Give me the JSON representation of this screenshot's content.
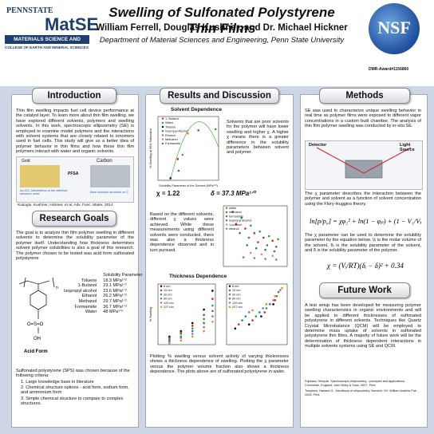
{
  "header": {
    "title": "Swelling of Sulfonated Polystyrene Thin Films",
    "authors": "William Ferrell, Douglas Kushner, and Dr. Michael Hickner",
    "department": "Department of Material Sciences and Engineering, Penn State University",
    "logo_psu": "PENNSTATE",
    "logo_matse": "MatSE",
    "matse_bar": "MATERIALS SCIENCE AND ENGINEERING",
    "matse_sub": "COLLEGE OF EARTH AND MINERAL SCIENCES",
    "nsf": "NSF",
    "award": "DMR-Award#1156860"
  },
  "sections": {
    "introduction": "Introduction",
    "research_goals": "Research Goals",
    "results": "Results and Discussion",
    "methods": "Methods",
    "future_work": "Future Work"
  },
  "introduction": {
    "body": "Thin film swelling impacts fuel cell device performance at the catalyst layer. To learn more about thin film swelling, we have explored different solvents, polymers and swelling solvents. In this work, spectroscopic ellipsometry (SE) is employed to examine model polymers and the interactions with solvent systems that are closely related to ionomers used in fuel cells. This study will give us a better idea of polymer behavior in thin films and how these thin film polymers interact with water and organic solvents.",
    "fig_labels": [
      "Gold",
      "Carbon",
      "PFSA"
    ],
    "fig_caption_left": "Au-SO₃ interactions at the interface structure order",
    "fig_caption_right": "Bare isotropic structure on C",
    "citation": "Kusoglu, Kushner, Hickner, et al. Adv. Func. Mater. 2014"
  },
  "research_goals": {
    "body": "The goal is to analyze thin film polymer swelling in different solvents to determine the solubility parameter of the polymer itself. Understanding how thickness determines solvent polymer solubilities is also a goal of this research. The polymer chosen to be tested was acid form sulfonated polystyrene",
    "table_header": "Solubility Parameter",
    "solvents": [
      {
        "name": "Toluene",
        "value": "18.3 MPa¹ᐟ²"
      },
      {
        "name": "1-Butanol",
        "value": "23.1 MPa¹ᐟ²"
      },
      {
        "name": "Isopropyl alcohol",
        "value": "23.6 MPa¹ᐟ²"
      },
      {
        "name": "Ethanol",
        "value": "26.2 MPa¹ᐟ²"
      },
      {
        "name": "Methanol",
        "value": "29.7 MPa¹ᐟ²"
      },
      {
        "name": "Formamide",
        "value": "36.7 MPa¹ᐟ²"
      },
      {
        "name": "Water",
        "value": "48 MPa¹ᐟ²"
      }
    ],
    "structure_label": "Acid Form",
    "struct_group": "O=S=O",
    "struct_oh": "OH",
    "struct_n": "n",
    "criteria_intro": "Sulfonated polystyrene (SPS) was chosen because of the following criteria:",
    "criteria": [
      "1. Large knowledge base in literature",
      "2. Chemical structure options - acid form, sodium form, and ammonium form",
      "3. Simple chemical structure to compare to complex structures."
    ]
  },
  "results": {
    "solvent_dep_title": "Solvent Dependence",
    "solvent_chart_legend": [
      "1- Butanol",
      "Water",
      "Toluene",
      "Isopropyl Alcohol",
      "Ethanol",
      "Methanol",
      "Formamide"
    ],
    "solvent_text": "Solvents that are poor solvents for the polymer will have lower swelling and higher χ. A higher χ means there is a greater difference in the solubility parameters between solvent and polymer.",
    "chi": "χ = 1.22",
    "delta": "δ = 37.3 MPa¹ᐟ²",
    "x_text": "Based on the different solvents, different χ values were achieved. While these measurements using different solvents were conducted, there was also a thickness dependence observed and in turn pursued.",
    "thickness_title": "Thickness Dependence",
    "thickness_text": "Plotting % swelling versus solvent activity of varying thicknesses shows a thickness dependence of swelling. Plotting the χ parameter versus the polymer volume fraction also shows a thickness dependence. The plots above are of sulfonated polystyrene in water."
  },
  "methods": {
    "body1": "SE was used to characterize unique swelling behavior in real time as polymer films were exposed to different vapor concentrations in a custom built chamber. The analysis of thin film polymer swelling was conducted by in-situ SE.",
    "detector": "Detector",
    "light_source": "Light Source",
    "body2": "The χ parameter describes the interaction between the polymer and solvent as a function of solvent concentration using the Flory-Huggins theory.",
    "body3": "The χ parameter can be used to determine the solubility parameter by the equation below. Vᵢ is the molar volume of the solvent, δᵢ is the solubility parameter of the solvent, and δ is the solubility parameter of the polymer."
  },
  "future_work": {
    "body": "A test setup has been developed for measuring polymer swelling characteristics in organic environments and will be applied to different thicknesses of sulfonated polystyrene in different solvents. Techniques like Quartz Crystal Microbalance (QCM) will be employed to determine mass uptake of solvents in sulfonated polystyrene thin films. A majority of future work will be the determination of thickness dependent interactions in multiple solvents systems using SE and QCM.",
    "refs": [
      "Fujiwara, Hiroyuki. Spectroscopic ellipsometry : principles and applications. Chichester, England: John Wiley & Sons, 2007. Print.",
      "Tompkins, Harland G.. Handbook of ellipsometry. Norwich, NY: William Andrew Pub. ; 2005. Print."
    ]
  },
  "chart_data": [
    {
      "type": "scatter",
      "title": "",
      "xlabel": "Solubility Parameter of the Solvent (MPa¹ᐟ²)",
      "ylabel": "% Swelling at 95% Saturation",
      "xlim": [
        10,
        50
      ],
      "ylim": [
        0,
        60
      ],
      "series": [
        {
          "name": "1- Butanol",
          "x": [
            23.1
          ],
          "y": [
            20
          ]
        },
        {
          "name": "Water",
          "x": [
            48
          ],
          "y": [
            48
          ]
        },
        {
          "name": "Toluene",
          "x": [
            18.3
          ],
          "y": [
            2
          ]
        },
        {
          "name": "Isopropyl Alcohol",
          "x": [
            23.6
          ],
          "y": [
            9
          ]
        },
        {
          "name": "Ethanol",
          "x": [
            26.2
          ],
          "y": [
            24
          ]
        },
        {
          "name": "Methanol",
          "x": [
            29.7
          ],
          "y": [
            44
          ]
        },
        {
          "name": "Formamide",
          "x": [
            36.7
          ],
          "y": [
            47
          ]
        }
      ],
      "colors": [
        "#d62728",
        "#2ca02c",
        "#000000",
        "#1f77b4",
        "#9467bd",
        "#ff7f0e",
        "#8c564b"
      ]
    },
    {
      "type": "scatter",
      "xlabel": "",
      "ylabel": "",
      "xlim": [
        0.65,
        1.0
      ],
      "ylim": [
        0,
        4
      ],
      "series": [
        {
          "name": "water",
          "x": [
            0.7,
            0.75,
            0.8,
            0.85,
            0.9,
            0.95
          ],
          "y": [
            3.6,
            3.2,
            2.7,
            2.3,
            2.0,
            1.8
          ]
        },
        {
          "name": "methanol",
          "x": [
            0.72,
            0.77,
            0.82,
            0.87,
            0.92
          ],
          "y": [
            2.8,
            2.5,
            2.2,
            1.9,
            1.7
          ]
        },
        {
          "name": "formamide",
          "x": [
            0.74,
            0.79,
            0.84,
            0.89,
            0.94
          ],
          "y": [
            2.2,
            1.9,
            1.6,
            1.4,
            1.3
          ]
        },
        {
          "name": "isopropyl alcohol",
          "x": [
            0.78,
            0.83,
            0.88,
            0.93
          ],
          "y": [
            1.4,
            1.2,
            1.1,
            1.0
          ]
        },
        {
          "name": "1-butanol",
          "x": [
            0.8,
            0.86,
            0.92
          ],
          "y": [
            0.9,
            0.8,
            0.7
          ]
        },
        {
          "name": "ethanol",
          "x": [
            0.76,
            0.82,
            0.88,
            0.94
          ],
          "y": [
            0.6,
            0.55,
            0.5,
            0.45
          ]
        }
      ],
      "colors": [
        "#2ca02c",
        "#d62728",
        "#8c564b",
        "#1f77b4",
        "#e377c2",
        "#9467bd"
      ]
    },
    {
      "type": "scatter",
      "xlabel": "",
      "ylabel": "% Swelling",
      "xlim": [
        0,
        1
      ],
      "ylim": [
        0,
        45
      ],
      "series": [
        {
          "name": "8 nm",
          "x": [
            0.2,
            0.4,
            0.6,
            0.8,
            0.95
          ],
          "y": [
            6,
            10,
            16,
            26,
            40
          ]
        },
        {
          "name": "15 nm",
          "x": [
            0.2,
            0.4,
            0.6,
            0.8,
            0.95
          ],
          "y": [
            5,
            9,
            14,
            22,
            34
          ]
        },
        {
          "name": "30 nm",
          "x": [
            0.2,
            0.4,
            0.6,
            0.8,
            0.95
          ],
          "y": [
            4,
            8,
            12,
            19,
            29
          ]
        },
        {
          "name": "60 nm",
          "x": [
            0.2,
            0.4,
            0.6,
            0.8,
            0.95
          ],
          "y": [
            3,
            6,
            10,
            16,
            25
          ]
        },
        {
          "name": "120 nm",
          "x": [
            0.2,
            0.4,
            0.6,
            0.8,
            0.95
          ],
          "y": [
            2,
            5,
            8,
            13,
            21
          ]
        },
        {
          "name": "227 nm",
          "x": [
            0.2,
            0.4,
            0.6,
            0.8,
            0.95
          ],
          "y": [
            1,
            3,
            6,
            10,
            17
          ]
        }
      ],
      "colors": [
        "#000000",
        "#d62728",
        "#2ca02c",
        "#1f77b4",
        "#9467bd",
        "#ff7f0e"
      ]
    },
    {
      "type": "scatter",
      "xlabel": "",
      "ylabel": "",
      "xlim": [
        0.65,
        1.0
      ],
      "ylim": [
        0.5,
        2.0
      ],
      "series": [
        {
          "name": "8 nm",
          "x": [
            0.7,
            0.78,
            0.85,
            0.92
          ],
          "y": [
            0.9,
            1.0,
            1.2,
            1.5
          ]
        },
        {
          "name": "15 nm",
          "x": [
            0.72,
            0.8,
            0.87,
            0.93
          ],
          "y": [
            1.0,
            1.1,
            1.3,
            1.6
          ]
        },
        {
          "name": "30 nm",
          "x": [
            0.74,
            0.82,
            0.88,
            0.94
          ],
          "y": [
            1.1,
            1.2,
            1.4,
            1.7
          ]
        },
        {
          "name": "60 nm",
          "x": [
            0.76,
            0.84,
            0.9,
            0.95
          ],
          "y": [
            1.2,
            1.3,
            1.5,
            1.8
          ]
        },
        {
          "name": "120 nm",
          "x": [
            0.78,
            0.86,
            0.92,
            0.96
          ],
          "y": [
            1.3,
            1.4,
            1.6,
            1.85
          ]
        },
        {
          "name": "227 nm",
          "x": [
            0.8,
            0.88,
            0.93,
            0.97
          ],
          "y": [
            1.35,
            1.5,
            1.7,
            1.9
          ]
        }
      ],
      "colors": [
        "#000000",
        "#d62728",
        "#2ca02c",
        "#1f77b4",
        "#9467bd",
        "#ff7f0e"
      ]
    }
  ]
}
